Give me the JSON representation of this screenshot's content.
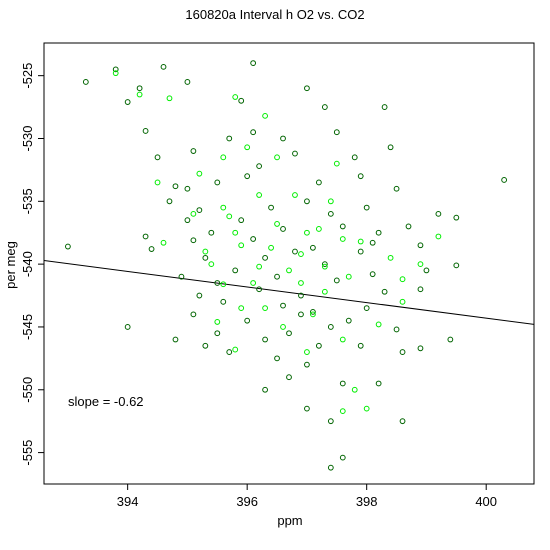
{
  "chart_data": {
    "type": "scatter",
    "title": "160820a   Interval h O2 vs. CO2",
    "xlabel": "ppm",
    "ylabel": "per meg",
    "xlim": [
      392.6,
      400.8
    ],
    "ylim": [
      -557.5,
      -522.4
    ],
    "x_ticks": [
      394,
      396,
      398,
      400
    ],
    "y_ticks": [
      -525,
      -530,
      -535,
      -540,
      -545,
      -550,
      -555
    ],
    "grid": false,
    "legend": "none",
    "annotation": "slope =  -0.62",
    "fit_line": {
      "slope": -0.62,
      "intercept": -296.3
    },
    "colors": {
      "dark_series": "#006400",
      "bright_series": "#00ee00",
      "line": "#000000"
    },
    "series": [
      {
        "color": "#006400",
        "points": [
          [
            393.0,
            -538.6
          ],
          [
            393.3,
            -525.5
          ],
          [
            393.8,
            -524.5
          ],
          [
            394.0,
            -527.1
          ],
          [
            394.0,
            -545.0
          ],
          [
            394.2,
            -526.0
          ],
          [
            394.3,
            -529.4
          ],
          [
            394.4,
            -538.8
          ],
          [
            394.5,
            -531.5
          ],
          [
            394.6,
            -524.3
          ],
          [
            394.7,
            -535.0
          ],
          [
            395.0,
            -525.5
          ],
          [
            395.0,
            -534.0
          ],
          [
            394.3,
            -537.8
          ],
          [
            395.1,
            -531.0
          ],
          [
            395.2,
            -535.7
          ],
          [
            394.8,
            -546.0
          ],
          [
            395.1,
            -544.0
          ],
          [
            395.3,
            -546.5
          ],
          [
            395.1,
            -538.1
          ],
          [
            395.4,
            -537.5
          ],
          [
            395.5,
            -533.5
          ],
          [
            395.7,
            -530.0
          ],
          [
            395.9,
            -527.0
          ],
          [
            396.1,
            -524.0
          ],
          [
            396.0,
            -533.0
          ],
          [
            396.2,
            -532.2
          ],
          [
            395.9,
            -536.5
          ],
          [
            396.1,
            -538.0
          ],
          [
            396.3,
            -539.5
          ],
          [
            395.8,
            -540.5
          ],
          [
            396.2,
            -542.0
          ],
          [
            395.6,
            -543.0
          ],
          [
            396.0,
            -544.5
          ],
          [
            396.3,
            -546.0
          ],
          [
            396.5,
            -547.5
          ],
          [
            396.7,
            -549.0
          ],
          [
            395.5,
            -541.5
          ],
          [
            396.6,
            -530.0
          ],
          [
            396.8,
            -531.2
          ],
          [
            397.0,
            -526.0
          ],
          [
            397.3,
            -527.5
          ],
          [
            397.5,
            -529.5
          ],
          [
            397.2,
            -533.5
          ],
          [
            397.0,
            -535.0
          ],
          [
            397.4,
            -536.0
          ],
          [
            397.6,
            -537.0
          ],
          [
            397.1,
            -538.7
          ],
          [
            397.3,
            -540.0
          ],
          [
            397.5,
            -541.3
          ],
          [
            396.9,
            -542.5
          ],
          [
            397.1,
            -543.8
          ],
          [
            397.4,
            -545.0
          ],
          [
            397.2,
            -546.5
          ],
          [
            397.0,
            -548.0
          ],
          [
            397.6,
            -549.5
          ],
          [
            397.4,
            -552.5
          ],
          [
            397.6,
            -555.4
          ],
          [
            397.4,
            -556.2
          ],
          [
            397.9,
            -533.0
          ],
          [
            398.0,
            -535.5
          ],
          [
            398.2,
            -537.5
          ],
          [
            397.9,
            -539.0
          ],
          [
            398.1,
            -540.8
          ],
          [
            398.3,
            -542.2
          ],
          [
            398.0,
            -543.5
          ],
          [
            398.5,
            -545.2
          ],
          [
            398.6,
            -547.0
          ],
          [
            398.2,
            -549.5
          ],
          [
            398.6,
            -552.5
          ],
          [
            398.3,
            -527.5
          ],
          [
            398.5,
            -534.0
          ],
          [
            398.7,
            -537.0
          ],
          [
            398.9,
            -538.5
          ],
          [
            399.0,
            -540.5
          ],
          [
            399.2,
            -536.0
          ],
          [
            398.9,
            -546.7
          ],
          [
            399.4,
            -546.0
          ],
          [
            399.5,
            -540.1
          ],
          [
            399.5,
            -536.3
          ],
          [
            400.3,
            -533.3
          ],
          [
            396.4,
            -535.5
          ],
          [
            396.6,
            -537.2
          ],
          [
            396.8,
            -539.0
          ],
          [
            396.5,
            -541.0
          ],
          [
            396.9,
            -544.0
          ],
          [
            396.7,
            -545.5
          ],
          [
            395.3,
            -539.5
          ],
          [
            395.5,
            -545.5
          ],
          [
            394.9,
            -541.0
          ],
          [
            395.2,
            -542.5
          ],
          [
            395.7,
            -547.0
          ],
          [
            395.0,
            -536.5
          ],
          [
            394.8,
            -533.8
          ],
          [
            396.1,
            -529.5
          ],
          [
            397.8,
            -531.5
          ],
          [
            398.4,
            -530.7
          ],
          [
            397.7,
            -544.5
          ],
          [
            397.9,
            -546.5
          ],
          [
            396.3,
            -550.0
          ],
          [
            397.0,
            -551.5
          ],
          [
            398.9,
            -542.0
          ],
          [
            398.1,
            -538.3
          ],
          [
            396.6,
            -543.3
          ]
        ]
      },
      {
        "color": "#00ee00",
        "points": [
          [
            393.8,
            -524.8
          ],
          [
            394.2,
            -526.5
          ],
          [
            394.7,
            -526.8
          ],
          [
            395.2,
            -532.8
          ],
          [
            395.6,
            -531.5
          ],
          [
            395.8,
            -526.7
          ],
          [
            396.0,
            -530.7
          ],
          [
            395.6,
            -535.5
          ],
          [
            395.8,
            -537.5
          ],
          [
            395.9,
            -538.5
          ],
          [
            395.7,
            -536.2
          ],
          [
            396.2,
            -534.5
          ],
          [
            396.5,
            -536.8
          ],
          [
            396.7,
            -540.5
          ],
          [
            396.3,
            -543.5
          ],
          [
            396.9,
            -541.5
          ],
          [
            397.0,
            -537.5
          ],
          [
            397.2,
            -537.2
          ],
          [
            397.5,
            -532.0
          ],
          [
            397.6,
            -538.0
          ],
          [
            397.7,
            -541.0
          ],
          [
            397.3,
            -542.2
          ],
          [
            397.1,
            -544.0
          ],
          [
            397.0,
            -547.0
          ],
          [
            396.6,
            -545.0
          ],
          [
            397.6,
            -546.0
          ],
          [
            397.8,
            -550.0
          ],
          [
            397.6,
            -551.7
          ],
          [
            398.0,
            -551.5
          ],
          [
            395.3,
            -539.0
          ],
          [
            395.6,
            -541.6
          ],
          [
            395.9,
            -543.5
          ],
          [
            396.2,
            -540.2
          ],
          [
            398.4,
            -539.5
          ],
          [
            398.6,
            -541.2
          ],
          [
            398.6,
            -543.0
          ],
          [
            399.2,
            -537.8
          ],
          [
            398.9,
            -540.0
          ],
          [
            394.5,
            -533.5
          ],
          [
            395.1,
            -536.0
          ],
          [
            396.4,
            -538.7
          ],
          [
            397.4,
            -535.0
          ],
          [
            396.8,
            -534.5
          ],
          [
            396.1,
            -541.5
          ],
          [
            397.9,
            -538.2
          ],
          [
            397.3,
            -540.2
          ],
          [
            396.9,
            -539.2
          ],
          [
            395.5,
            -544.6
          ],
          [
            395.8,
            -546.8
          ],
          [
            398.2,
            -544.8
          ],
          [
            395.4,
            -540.0
          ],
          [
            396.5,
            -531.5
          ],
          [
            396.3,
            -528.2
          ],
          [
            394.6,
            -538.3
          ]
        ]
      }
    ]
  }
}
